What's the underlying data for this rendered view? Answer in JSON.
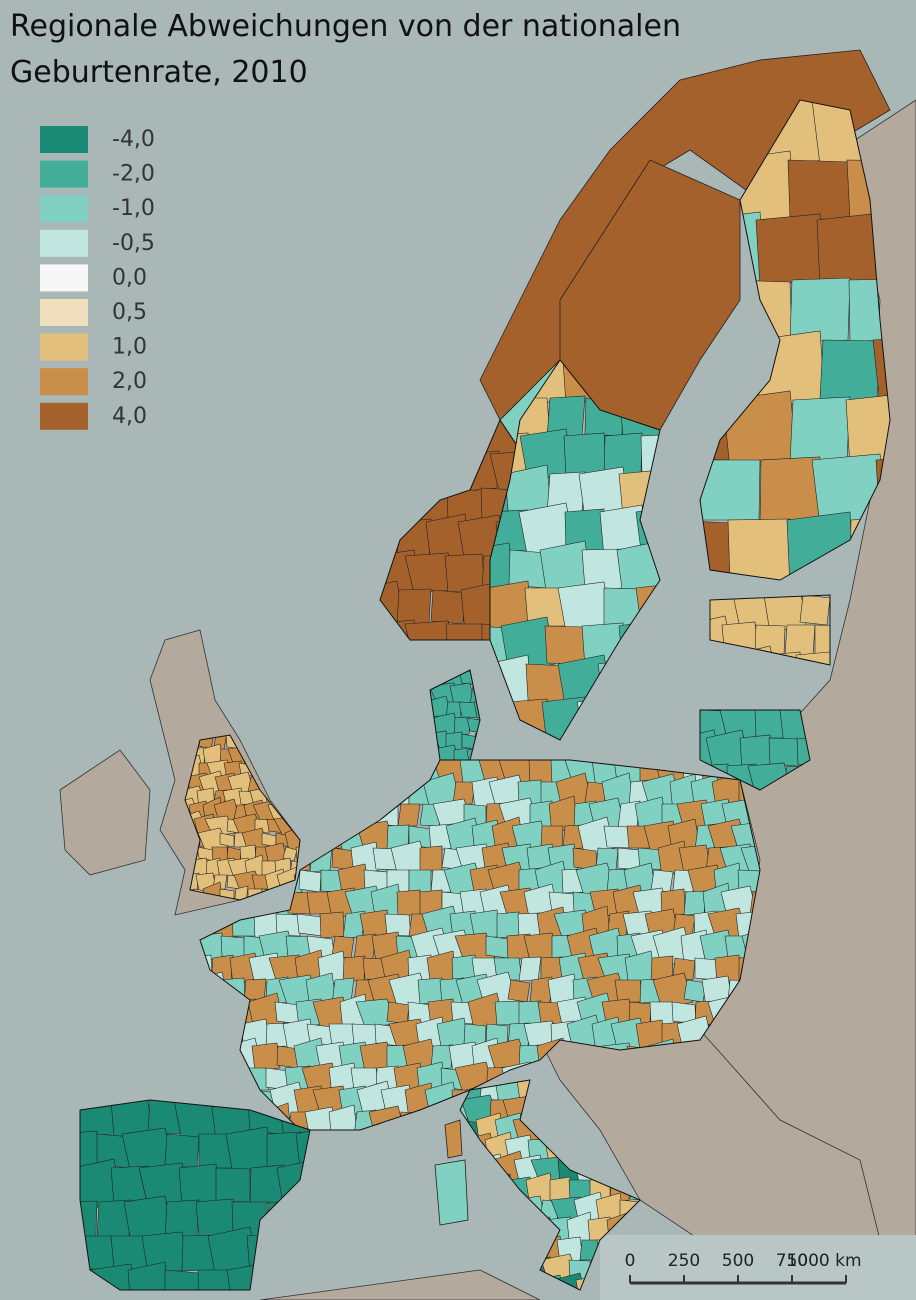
{
  "title": "Regionale Abweichungen von der nationalen Geburtenrate, 2010",
  "legend": {
    "items": [
      {
        "label": "-4,0",
        "color": "#1b8a74"
      },
      {
        "label": "-2,0",
        "color": "#42ad99"
      },
      {
        "label": "-1,0",
        "color": "#80d1c1"
      },
      {
        "label": "-0,5",
        "color": "#c0e6df"
      },
      {
        "label": "0,0",
        "color": "#f7f7f7"
      },
      {
        "label": "0,5",
        "color": "#efdfbc"
      },
      {
        "label": "1,0",
        "color": "#e2c07c"
      },
      {
        "label": "2,0",
        "color": "#c98f4a"
      },
      {
        "label": "4,0",
        "color": "#a5612c"
      }
    ]
  },
  "scale_bar": {
    "labels": [
      "0",
      "250",
      "500",
      "750",
      "1000 km"
    ]
  }
}
